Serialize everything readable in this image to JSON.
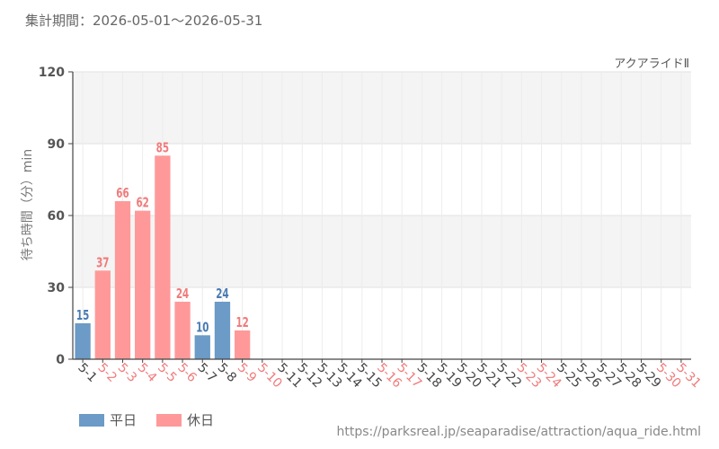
{
  "header": {
    "period_label": "集計期間：2026-05-01～2026-05-31"
  },
  "footer": {
    "url": "https://parksreal.jp/seaparadise/attraction/aqua_ride.html"
  },
  "colors": {
    "weekday": "#6b9bc6",
    "holiday": "#ff9999",
    "weekday_text": "#4a7bb2",
    "holiday_text": "#f07b7b",
    "band": "#f4f4f4"
  },
  "legend": [
    {
      "label": "平日",
      "kind": "weekday"
    },
    {
      "label": "休日",
      "kind": "holiday"
    }
  ],
  "chart_data": {
    "type": "bar",
    "title": "",
    "series_label": "アクアライドⅡ",
    "ylabel": "待ち時間（分）min",
    "xlabel": "",
    "ylim": [
      0,
      120
    ],
    "yticks": [
      0,
      30,
      60,
      90,
      120
    ],
    "grid": true,
    "legend_position": "bottom-left",
    "categories": [
      "5-1",
      "5-2",
      "5-3",
      "5-4",
      "5-5",
      "5-6",
      "5-7",
      "5-8",
      "5-9",
      "5-10",
      "5-11",
      "5-12",
      "5-13",
      "5-14",
      "5-15",
      "5-16",
      "5-17",
      "5-18",
      "5-19",
      "5-20",
      "5-21",
      "5-22",
      "5-23",
      "5-24",
      "5-25",
      "5-26",
      "5-27",
      "5-28",
      "5-29",
      "5-30",
      "5-31"
    ],
    "day_type": [
      "weekday",
      "holiday",
      "holiday",
      "holiday",
      "holiday",
      "holiday",
      "weekday",
      "weekday",
      "holiday",
      "holiday",
      "weekday",
      "weekday",
      "weekday",
      "weekday",
      "weekday",
      "holiday",
      "holiday",
      "weekday",
      "weekday",
      "weekday",
      "weekday",
      "weekday",
      "holiday",
      "holiday",
      "weekday",
      "weekday",
      "weekday",
      "weekday",
      "weekday",
      "holiday",
      "holiday"
    ],
    "values": [
      15,
      37,
      66,
      62,
      85,
      24,
      10,
      24,
      12,
      null,
      null,
      null,
      null,
      null,
      null,
      null,
      null,
      null,
      null,
      null,
      null,
      null,
      null,
      null,
      null,
      null,
      null,
      null,
      null,
      null,
      null
    ]
  }
}
